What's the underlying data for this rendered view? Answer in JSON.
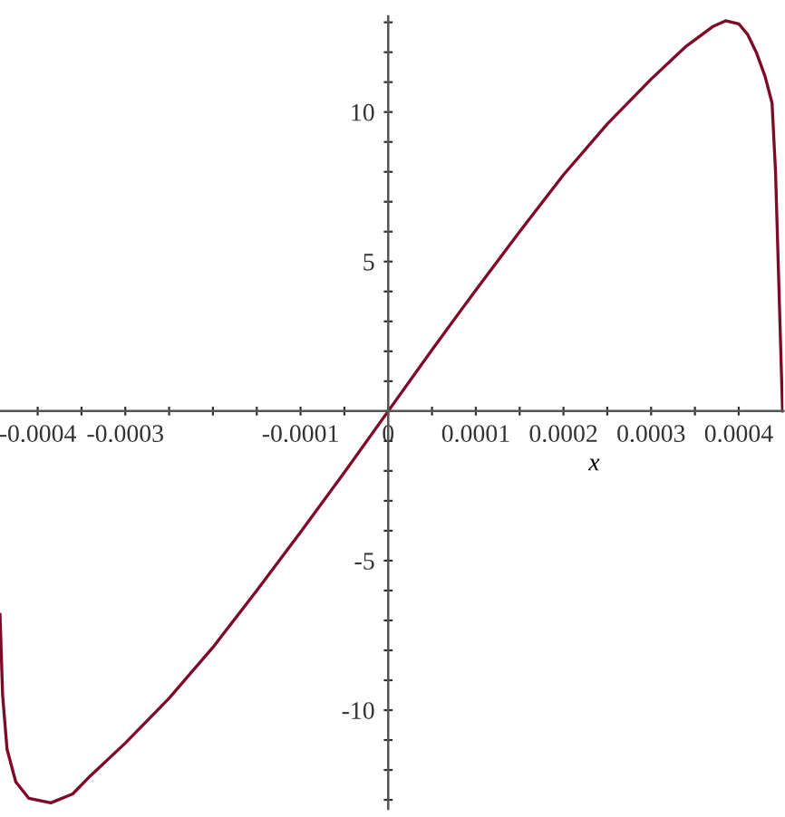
{
  "chart_data": {
    "type": "line",
    "xlabel": "x",
    "x": [
      -0.000443,
      -0.00044,
      -0.000435,
      -0.000425,
      -0.00041,
      -0.000385,
      -0.00036,
      -0.00034,
      -0.0003,
      -0.00025,
      -0.0002,
      -0.00015,
      -0.0001,
      -5e-05,
      0,
      5e-05,
      0.0001,
      0.00015,
      0.0002,
      0.00025,
      0.0003,
      0.00034,
      0.00037,
      0.000385,
      0.0004,
      0.00041,
      0.00042,
      0.00043,
      0.000438,
      0.000442,
      0.000446,
      0.00045
    ],
    "series": [
      {
        "color": "#7f0a28",
        "values": [
          -6.8,
          -9.5,
          -11.3,
          -12.4,
          -12.95,
          -13.1,
          -12.8,
          -12.2,
          -11.1,
          -9.6,
          -7.9,
          -6.0,
          -4.05,
          -2.05,
          0,
          2.05,
          4.05,
          6.0,
          7.9,
          9.6,
          11.1,
          12.2,
          12.85,
          13.05,
          12.95,
          12.6,
          12.0,
          11.2,
          10.3,
          8,
          4,
          0
        ]
      }
    ],
    "xlim": [
      -0.000443,
      0.000451
    ],
    "ylim": [
      -13.3,
      13.2
    ],
    "xticks": [
      -0.0004,
      -0.0003,
      {
        "value": -0.0002,
        "label": null
      },
      -0.0001,
      0,
      0.0001,
      0.0002,
      0.0003,
      0.0004,
      {
        "value": -0.00035,
        "label": null
      },
      {
        "value": -0.00025,
        "label": null
      },
      {
        "value": -0.00015,
        "label": null
      },
      {
        "value": -5e-05,
        "label": null
      },
      {
        "value": 5e-05,
        "label": null
      },
      {
        "value": 0.00015,
        "label": null
      },
      {
        "value": 0.00025,
        "label": null
      },
      {
        "value": 0.00035,
        "label": null
      }
    ],
    "yticks": [
      -10,
      -5,
      {
        "value": 0,
        "label": null
      },
      5,
      10,
      {
        "value": -13,
        "label": null
      },
      {
        "value": -12,
        "label": null
      },
      {
        "value": -11,
        "label": null
      },
      {
        "value": -9,
        "label": null
      },
      {
        "value": -8,
        "label": null
      },
      {
        "value": -7,
        "label": null
      },
      {
        "value": -6,
        "label": null
      },
      {
        "value": -4,
        "label": null
      },
      {
        "value": -3,
        "label": null
      },
      {
        "value": -2,
        "label": null
      },
      {
        "value": -1,
        "label": null
      },
      {
        "value": 1,
        "label": null
      },
      {
        "value": 2,
        "label": null
      },
      {
        "value": 3,
        "label": null
      },
      {
        "value": 4,
        "label": null
      },
      {
        "value": 6,
        "label": null
      },
      {
        "value": 7,
        "label": null
      },
      {
        "value": 8,
        "label": null
      },
      {
        "value": 9,
        "label": null
      },
      {
        "value": 11,
        "label": null
      },
      {
        "value": 12,
        "label": null
      },
      {
        "value": 13,
        "label": null
      }
    ],
    "grid": false,
    "marker": "none",
    "line_style": "solid"
  }
}
